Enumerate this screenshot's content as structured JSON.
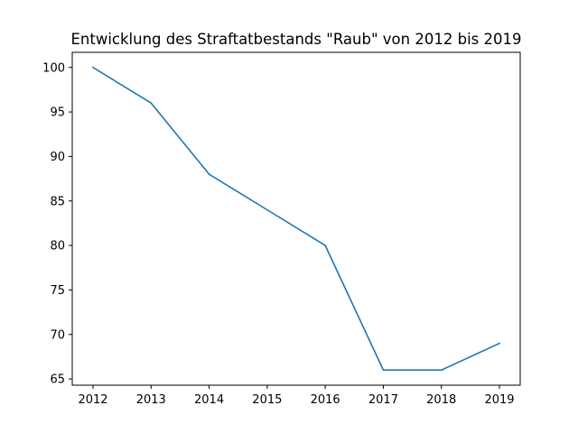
{
  "chart_data": {
    "type": "line",
    "title": "Entwicklung des Straftatbestands \"Raub\" von 2012 bis 2019",
    "xlabel": "",
    "ylabel": "",
    "x": [
      "2012",
      "2013",
      "2014",
      "2015",
      "2016",
      "2017",
      "2018",
      "2019"
    ],
    "series": [
      {
        "values": [
          100,
          96,
          88,
          84,
          80,
          66,
          66,
          69
        ]
      }
    ],
    "ylim": [
      64.3,
      101.7
    ],
    "yticks": [
      65,
      70,
      75,
      80,
      85,
      90,
      95,
      100
    ],
    "grid": false,
    "line_color": "#1f77b4"
  }
}
